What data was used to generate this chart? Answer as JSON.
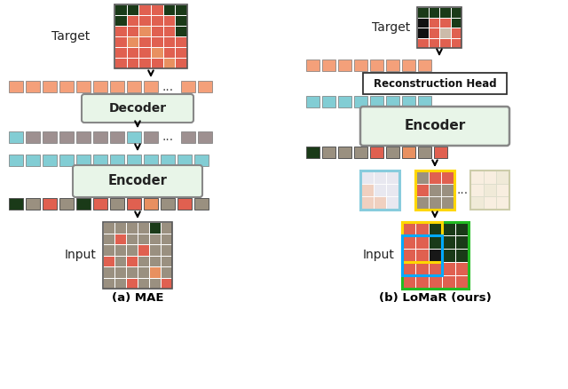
{
  "fig_width": 6.4,
  "fig_height": 4.38,
  "dpi": 100,
  "bg_color": "#ffffff",
  "salmon_color": "#F4A07A",
  "cyan_color": "#82CDD4",
  "gray_color": "#9E9090",
  "encoder_box_color": "#E8F5E8",
  "encoder_border": "#888888",
  "recon_box_color": "#ffffff",
  "recon_border": "#333333",
  "caption_a": "(a) MAE",
  "caption_b": "(b) LoMaR (ours)",
  "label_target": "Target",
  "label_input": "Input",
  "label_encoder": "Encoder",
  "label_decoder": "Decoder",
  "label_recon": "Reconstruction Head",
  "yellow_border": "#FFD700",
  "blue_border": "#00AAFF",
  "green_border": "#22BB22",
  "cyan_patch_border": "#88CCDD"
}
